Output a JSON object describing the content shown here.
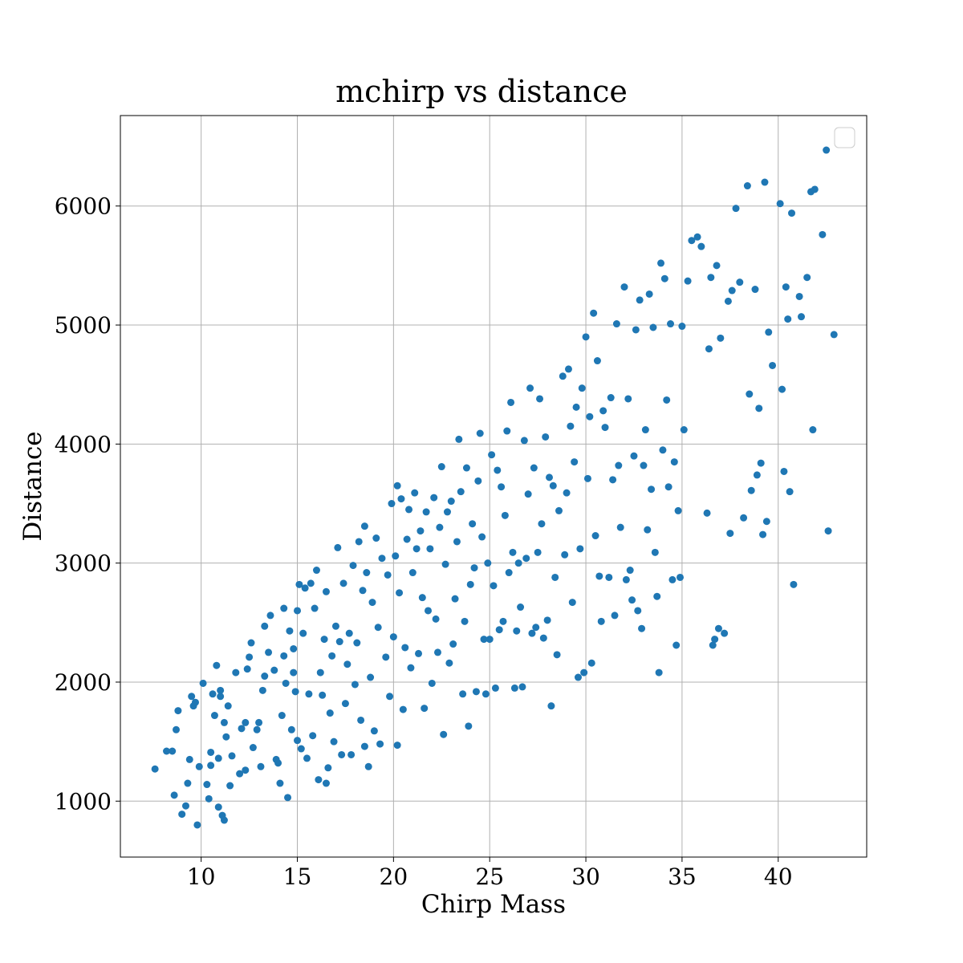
{
  "chart_data": {
    "type": "scatter",
    "title": "mchirp vs distance",
    "xlabel": "Chirp Mass",
    "ylabel": "Distance",
    "xlim": [
      5.8,
      44.6
    ],
    "ylim": [
      530,
      6760
    ],
    "xticks": [
      10,
      15,
      20,
      25,
      30,
      35,
      40
    ],
    "yticks": [
      1000,
      2000,
      3000,
      4000,
      5000,
      6000
    ],
    "grid": true,
    "legend": {
      "location": "top-right",
      "entries": []
    },
    "color": "#1f77b4",
    "series": [
      {
        "points": [
          [
            7.6,
            1270
          ],
          [
            8.2,
            1420
          ],
          [
            8.5,
            1420
          ],
          [
            8.6,
            1050
          ],
          [
            8.7,
            1600
          ],
          [
            8.8,
            1760
          ],
          [
            9.0,
            890
          ],
          [
            9.2,
            960
          ],
          [
            9.3,
            1150
          ],
          [
            9.4,
            1350
          ],
          [
            9.5,
            1880
          ],
          [
            9.6,
            1800
          ],
          [
            9.7,
            1830
          ],
          [
            9.8,
            800
          ],
          [
            9.9,
            1290
          ],
          [
            10.1,
            1990
          ],
          [
            10.3,
            1140
          ],
          [
            10.4,
            1020
          ],
          [
            10.5,
            1300
          ],
          [
            10.5,
            1410
          ],
          [
            10.6,
            1900
          ],
          [
            10.7,
            1720
          ],
          [
            10.8,
            2140
          ],
          [
            10.9,
            950
          ],
          [
            10.9,
            1360
          ],
          [
            11.0,
            1880
          ],
          [
            11.0,
            1930
          ],
          [
            11.1,
            880
          ],
          [
            11.2,
            840
          ],
          [
            11.2,
            1660
          ],
          [
            11.3,
            1540
          ],
          [
            11.4,
            1800
          ],
          [
            11.5,
            1130
          ],
          [
            11.6,
            1380
          ],
          [
            11.8,
            2080
          ],
          [
            12.0,
            1230
          ],
          [
            12.1,
            1610
          ],
          [
            12.3,
            1260
          ],
          [
            12.3,
            1660
          ],
          [
            12.4,
            2110
          ],
          [
            12.5,
            2210
          ],
          [
            12.6,
            2330
          ],
          [
            12.7,
            1450
          ],
          [
            12.9,
            1600
          ],
          [
            13.0,
            1660
          ],
          [
            13.1,
            1290
          ],
          [
            13.2,
            1930
          ],
          [
            13.3,
            2050
          ],
          [
            13.3,
            2470
          ],
          [
            13.5,
            2250
          ],
          [
            13.6,
            2560
          ],
          [
            13.8,
            2100
          ],
          [
            13.9,
            1350
          ],
          [
            14.0,
            1320
          ],
          [
            14.1,
            1150
          ],
          [
            14.2,
            1720
          ],
          [
            14.3,
            2220
          ],
          [
            14.3,
            2620
          ],
          [
            14.4,
            1990
          ],
          [
            14.5,
            1030
          ],
          [
            14.6,
            2430
          ],
          [
            14.7,
            1600
          ],
          [
            14.8,
            2080
          ],
          [
            14.8,
            2280
          ],
          [
            14.9,
            1920
          ],
          [
            15.0,
            1510
          ],
          [
            15.0,
            2600
          ],
          [
            15.1,
            2820
          ],
          [
            15.2,
            1440
          ],
          [
            15.3,
            2410
          ],
          [
            15.4,
            2790
          ],
          [
            15.5,
            1360
          ],
          [
            15.6,
            1900
          ],
          [
            15.7,
            2830
          ],
          [
            15.8,
            1550
          ],
          [
            15.9,
            2620
          ],
          [
            16.0,
            2940
          ],
          [
            16.1,
            1180
          ],
          [
            16.2,
            2080
          ],
          [
            16.3,
            1890
          ],
          [
            16.4,
            2360
          ],
          [
            16.5,
            1150
          ],
          [
            16.5,
            2760
          ],
          [
            16.6,
            1280
          ],
          [
            16.7,
            1740
          ],
          [
            16.8,
            2220
          ],
          [
            16.9,
            1500
          ],
          [
            17.0,
            2470
          ],
          [
            17.1,
            3130
          ],
          [
            17.2,
            2340
          ],
          [
            17.3,
            1390
          ],
          [
            17.4,
            2830
          ],
          [
            17.5,
            1820
          ],
          [
            17.6,
            2150
          ],
          [
            17.7,
            2410
          ],
          [
            17.8,
            1390
          ],
          [
            17.9,
            2980
          ],
          [
            18.0,
            1980
          ],
          [
            18.1,
            2330
          ],
          [
            18.2,
            3180
          ],
          [
            18.3,
            1680
          ],
          [
            18.4,
            2770
          ],
          [
            18.5,
            1460
          ],
          [
            18.5,
            3310
          ],
          [
            18.6,
            2920
          ],
          [
            18.7,
            1290
          ],
          [
            18.8,
            2040
          ],
          [
            18.9,
            2670
          ],
          [
            19.0,
            1590
          ],
          [
            19.1,
            3210
          ],
          [
            19.2,
            2460
          ],
          [
            19.3,
            1480
          ],
          [
            19.4,
            3040
          ],
          [
            19.6,
            2210
          ],
          [
            19.7,
            2900
          ],
          [
            19.8,
            1880
          ],
          [
            19.9,
            3500
          ],
          [
            20.0,
            2380
          ],
          [
            20.1,
            3060
          ],
          [
            20.2,
            1470
          ],
          [
            20.2,
            3650
          ],
          [
            20.3,
            2750
          ],
          [
            20.4,
            3540
          ],
          [
            20.5,
            1770
          ],
          [
            20.6,
            2290
          ],
          [
            20.7,
            3200
          ],
          [
            20.8,
            3450
          ],
          [
            20.9,
            2120
          ],
          [
            21.0,
            2920
          ],
          [
            21.1,
            3590
          ],
          [
            21.2,
            3120
          ],
          [
            21.3,
            2240
          ],
          [
            21.4,
            3270
          ],
          [
            21.5,
            2710
          ],
          [
            21.6,
            1780
          ],
          [
            21.7,
            3430
          ],
          [
            21.8,
            2600
          ],
          [
            21.9,
            3120
          ],
          [
            22.0,
            1990
          ],
          [
            22.1,
            3550
          ],
          [
            22.2,
            2530
          ],
          [
            22.3,
            2250
          ],
          [
            22.4,
            3300
          ],
          [
            22.5,
            3810
          ],
          [
            22.6,
            1560
          ],
          [
            22.7,
            2990
          ],
          [
            22.8,
            3430
          ],
          [
            22.9,
            2160
          ],
          [
            23.0,
            3520
          ],
          [
            23.1,
            2320
          ],
          [
            23.2,
            2700
          ],
          [
            23.3,
            3180
          ],
          [
            23.4,
            4040
          ],
          [
            23.5,
            3600
          ],
          [
            23.6,
            1900
          ],
          [
            23.7,
            2510
          ],
          [
            23.8,
            3800
          ],
          [
            23.9,
            1630
          ],
          [
            24.0,
            2820
          ],
          [
            24.1,
            3330
          ],
          [
            24.2,
            2960
          ],
          [
            24.3,
            1920
          ],
          [
            24.4,
            3690
          ],
          [
            24.5,
            4090
          ],
          [
            24.6,
            3220
          ],
          [
            24.7,
            2360
          ],
          [
            24.8,
            1900
          ],
          [
            24.9,
            3000
          ],
          [
            25.0,
            2360
          ],
          [
            25.1,
            3910
          ],
          [
            25.2,
            2810
          ],
          [
            25.3,
            1950
          ],
          [
            25.4,
            3780
          ],
          [
            25.5,
            2440
          ],
          [
            25.6,
            3640
          ],
          [
            25.7,
            2510
          ],
          [
            25.8,
            3400
          ],
          [
            25.9,
            4110
          ],
          [
            26.0,
            2920
          ],
          [
            26.1,
            4350
          ],
          [
            26.2,
            3090
          ],
          [
            26.3,
            1950
          ],
          [
            26.4,
            2430
          ],
          [
            26.5,
            3000
          ],
          [
            26.6,
            2630
          ],
          [
            26.7,
            1960
          ],
          [
            26.8,
            4030
          ],
          [
            26.9,
            3040
          ],
          [
            27.0,
            3580
          ],
          [
            27.1,
            4470
          ],
          [
            27.2,
            2410
          ],
          [
            27.3,
            3800
          ],
          [
            27.4,
            2460
          ],
          [
            27.5,
            3090
          ],
          [
            27.6,
            4380
          ],
          [
            27.7,
            3330
          ],
          [
            27.8,
            2370
          ],
          [
            27.9,
            4060
          ],
          [
            28.0,
            2520
          ],
          [
            28.1,
            3720
          ],
          [
            28.2,
            1800
          ],
          [
            28.3,
            3650
          ],
          [
            28.4,
            2880
          ],
          [
            28.5,
            2230
          ],
          [
            28.6,
            3440
          ],
          [
            28.8,
            4570
          ],
          [
            28.9,
            3070
          ],
          [
            29.0,
            3590
          ],
          [
            29.1,
            4630
          ],
          [
            29.2,
            4150
          ],
          [
            29.3,
            2670
          ],
          [
            29.4,
            3850
          ],
          [
            29.5,
            4310
          ],
          [
            29.6,
            2040
          ],
          [
            29.7,
            3120
          ],
          [
            29.8,
            4470
          ],
          [
            29.9,
            2080
          ],
          [
            30.0,
            4900
          ],
          [
            30.1,
            3710
          ],
          [
            30.2,
            4230
          ],
          [
            30.3,
            2160
          ],
          [
            30.4,
            5100
          ],
          [
            30.5,
            3230
          ],
          [
            30.6,
            4700
          ],
          [
            30.7,
            2890
          ],
          [
            30.8,
            2510
          ],
          [
            30.9,
            4280
          ],
          [
            31.0,
            4140
          ],
          [
            31.2,
            2880
          ],
          [
            31.3,
            4390
          ],
          [
            31.4,
            3700
          ],
          [
            31.5,
            2560
          ],
          [
            31.6,
            5010
          ],
          [
            31.7,
            3820
          ],
          [
            31.8,
            3300
          ],
          [
            32.0,
            5320
          ],
          [
            32.1,
            2860
          ],
          [
            32.2,
            4380
          ],
          [
            32.3,
            2940
          ],
          [
            32.4,
            2690
          ],
          [
            32.5,
            3900
          ],
          [
            32.6,
            4960
          ],
          [
            32.7,
            2600
          ],
          [
            32.8,
            5210
          ],
          [
            32.9,
            2450
          ],
          [
            33.0,
            3820
          ],
          [
            33.1,
            4120
          ],
          [
            33.2,
            3280
          ],
          [
            33.3,
            5260
          ],
          [
            33.4,
            3620
          ],
          [
            33.5,
            4980
          ],
          [
            33.6,
            3090
          ],
          [
            33.7,
            2720
          ],
          [
            33.8,
            2080
          ],
          [
            33.9,
            5520
          ],
          [
            34.0,
            3950
          ],
          [
            34.1,
            5390
          ],
          [
            34.2,
            4370
          ],
          [
            34.3,
            3640
          ],
          [
            34.4,
            5010
          ],
          [
            34.5,
            2860
          ],
          [
            34.6,
            3850
          ],
          [
            34.7,
            2310
          ],
          [
            34.8,
            3440
          ],
          [
            34.9,
            2880
          ],
          [
            35.0,
            4990
          ],
          [
            35.1,
            4120
          ],
          [
            35.3,
            5370
          ],
          [
            35.5,
            5710
          ],
          [
            35.8,
            5740
          ],
          [
            36.0,
            5660
          ],
          [
            36.3,
            3420
          ],
          [
            36.4,
            4800
          ],
          [
            36.5,
            5400
          ],
          [
            36.6,
            2310
          ],
          [
            36.7,
            2360
          ],
          [
            36.8,
            5500
          ],
          [
            36.9,
            2450
          ],
          [
            37.0,
            4890
          ],
          [
            37.2,
            2410
          ],
          [
            37.4,
            5200
          ],
          [
            37.5,
            3250
          ],
          [
            37.6,
            5290
          ],
          [
            37.8,
            5980
          ],
          [
            38.0,
            5360
          ],
          [
            38.2,
            3380
          ],
          [
            38.4,
            6170
          ],
          [
            38.5,
            4420
          ],
          [
            38.6,
            3610
          ],
          [
            38.8,
            5300
          ],
          [
            38.9,
            3740
          ],
          [
            39.0,
            4300
          ],
          [
            39.1,
            3840
          ],
          [
            39.2,
            3240
          ],
          [
            39.3,
            6200
          ],
          [
            39.4,
            3350
          ],
          [
            39.5,
            4940
          ],
          [
            39.7,
            4660
          ],
          [
            40.1,
            6020
          ],
          [
            40.2,
            4460
          ],
          [
            40.3,
            3770
          ],
          [
            40.4,
            5320
          ],
          [
            40.5,
            5050
          ],
          [
            40.6,
            3600
          ],
          [
            40.7,
            5940
          ],
          [
            40.8,
            2820
          ],
          [
            41.1,
            5240
          ],
          [
            41.2,
            5070
          ],
          [
            41.5,
            5400
          ],
          [
            41.7,
            6120
          ],
          [
            41.8,
            4120
          ],
          [
            41.9,
            6140
          ],
          [
            42.3,
            5760
          ],
          [
            42.5,
            6470
          ],
          [
            42.6,
            3270
          ],
          [
            42.9,
            4920
          ]
        ]
      }
    ]
  }
}
